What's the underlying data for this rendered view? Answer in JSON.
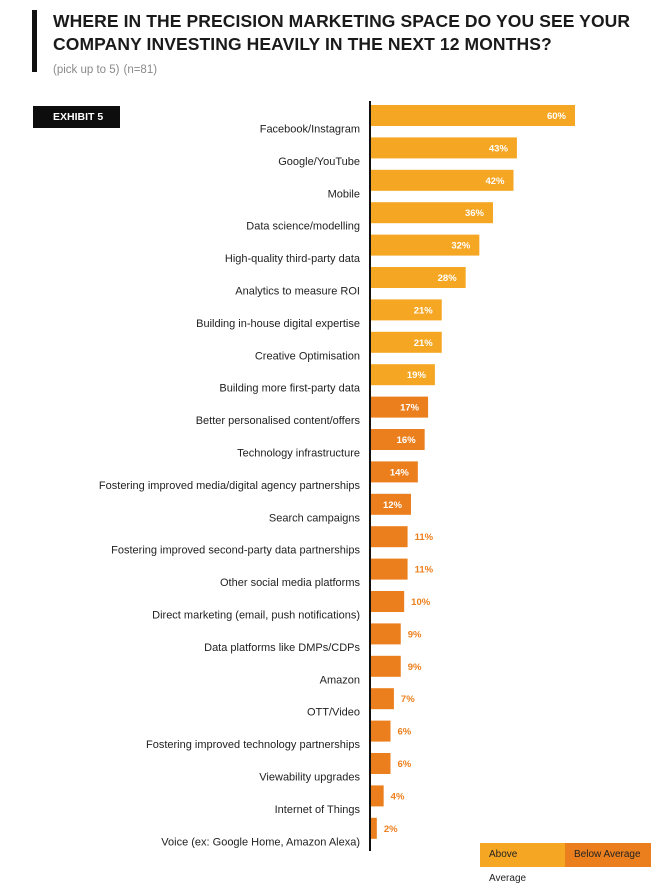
{
  "header": {
    "title": "WHERE IN THE PRECISION MARKETING SPACE DO YOU SEE YOUR COMPANY INVESTING HEAVILY IN THE NEXT 12 MONTHS?",
    "subtitle_note": "(pick up to 5)",
    "subtitle_n": "(n=81)",
    "exhibit": "EXHIBIT 5"
  },
  "legend": {
    "above": "Above Average",
    "below": "Below Average"
  },
  "colors": {
    "above": "#f5a623",
    "below": "#ec7f1d",
    "axis": "#111111"
  },
  "chart_data": {
    "type": "bar",
    "orientation": "horizontal",
    "categories": [
      "Facebook/Instagram",
      "Google/YouTube",
      "Mobile",
      "Data science/modelling",
      "High-quality third-party data",
      "Analytics to measure ROI",
      "Building in-house digital expertise",
      "Creative Optimisation",
      "Building more first-party data",
      "Better personalised content/offers",
      "Technology infrastructure",
      "Fostering improved media/digital agency partnerships",
      "Search campaigns",
      "Fostering improved second-party data partnerships",
      "Other social media platforms",
      "Direct marketing (email, push notifications)",
      "Data platforms like DMPs/CDPs",
      "Amazon",
      "OTT/Video",
      "Fostering improved technology partnerships",
      "Viewability upgrades",
      "Internet of Things",
      "Voice (ex: Google Home, Amazon Alexa)"
    ],
    "values": [
      60,
      43,
      42,
      36,
      32,
      28,
      21,
      21,
      19,
      17,
      16,
      14,
      12,
      11,
      11,
      10,
      9,
      9,
      7,
      6,
      6,
      4,
      2
    ],
    "labels": [
      "60%",
      "43%",
      "42%",
      "36%",
      "32%",
      "28%",
      "21%",
      "21%",
      "19%",
      "17%",
      "16%",
      "14%",
      "12%",
      "11%",
      "11%",
      "10%",
      "9%",
      "9%",
      "7%",
      "6%",
      "6%",
      "4%",
      "2%"
    ],
    "group": [
      "above",
      "above",
      "above",
      "above",
      "above",
      "above",
      "above",
      "above",
      "above",
      "below",
      "below",
      "below",
      "below",
      "below",
      "below",
      "below",
      "below",
      "below",
      "below",
      "below",
      "below",
      "below",
      "below"
    ],
    "unit": "%",
    "xlim": [
      0,
      60
    ],
    "grid": false,
    "legend_position": "bottom-right"
  }
}
